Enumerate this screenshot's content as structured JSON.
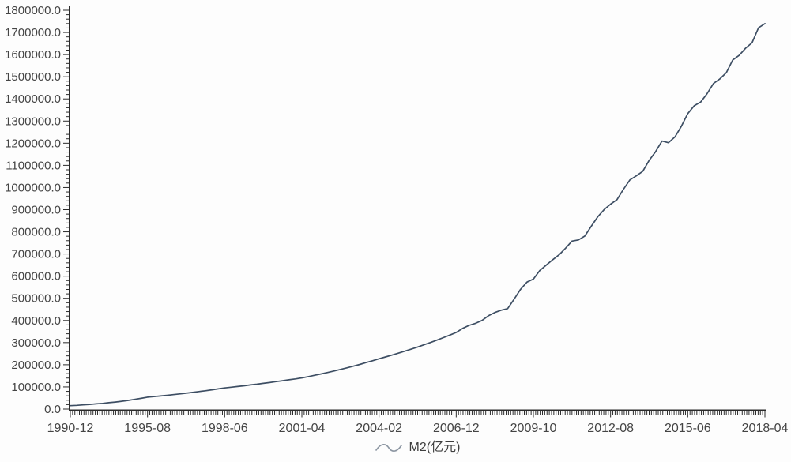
{
  "chart_data": {
    "type": "line",
    "title": "",
    "legend": [
      "M2(亿元)"
    ],
    "legend_position": "bottom-center",
    "x_range_dates": [
      "1990-12",
      "2018-04"
    ],
    "x_labels": [
      "1990-12",
      "1995-08",
      "1998-06",
      "2001-04",
      "2004-02",
      "2006-12",
      "2009-10",
      "2012-08",
      "2015-06",
      "2018-04"
    ],
    "x_label_every": 12,
    "x_minor_ticks_between_labels": 34,
    "ylim": [
      0,
      1800000
    ],
    "y_tick_step": 100000,
    "y_minor_tick_step": 20000,
    "y_tick_labels": [
      "0.0",
      "100000.0",
      "200000.0",
      "300000.0",
      "400000.0",
      "500000.0",
      "600000.0",
      "700000.0",
      "800000.0",
      "900000.0",
      "1000000.0",
      "1100000.0",
      "1200000.0",
      "1300000.0",
      "1400000.0",
      "1500000.0",
      "1600000.0",
      "1700000.0",
      "1800000.0"
    ],
    "grid": "off",
    "series": [
      {
        "name": "M2(亿元)",
        "unit": "亿元",
        "values": [
          15293,
          16900,
          18950,
          20850,
          23350,
          25750,
          28750,
          31750,
          35450,
          39150,
          43700,
          48350,
          53800,
          56400,
          59300,
          62000,
          65300,
          68300,
          71800,
          75200,
          79000,
          82700,
          87000,
          91100,
          95700,
          98800,
          102100,
          105300,
          108900,
          112400,
          116100,
          119800,
          123900,
          127800,
          132100,
          136300,
          140800,
          146500,
          152600,
          158500,
          165200,
          171700,
          178900,
          185900,
          193700,
          201300,
          209800,
          218000,
          227000,
          235100,
          243500,
          252200,
          261200,
          270500,
          280200,
          290200,
          300500,
          311300,
          322400,
          333900,
          345600,
          364100,
          377800,
          387200,
          399800,
          421000,
          436000,
          446400,
          453300,
          496100,
          540500,
          573100,
          586600,
          625600,
          649900,
          673900,
          696500,
          725900,
          758100,
          763400,
          780900,
          825500,
          867500,
          900400,
          925100,
          945200,
          991700,
          1034400,
          1052700,
          1073100,
          1122400,
          1161600,
          1209600,
          1202100,
          1228400,
          1276200,
          1333400,
          1368900,
          1385600,
          1423600,
          1469700,
          1490200,
          1518300,
          1575900,
          1596300,
          1629000,
          1653400,
          1720800,
          1739900
        ]
      }
    ],
    "colors": {
      "line": "#3d4e63",
      "axis": "#2b2b2b",
      "tick_label": "#444444",
      "legend_marker": "#8b95a1",
      "legend_text": "#3f3f3f",
      "background": "#fdfdfd"
    }
  }
}
